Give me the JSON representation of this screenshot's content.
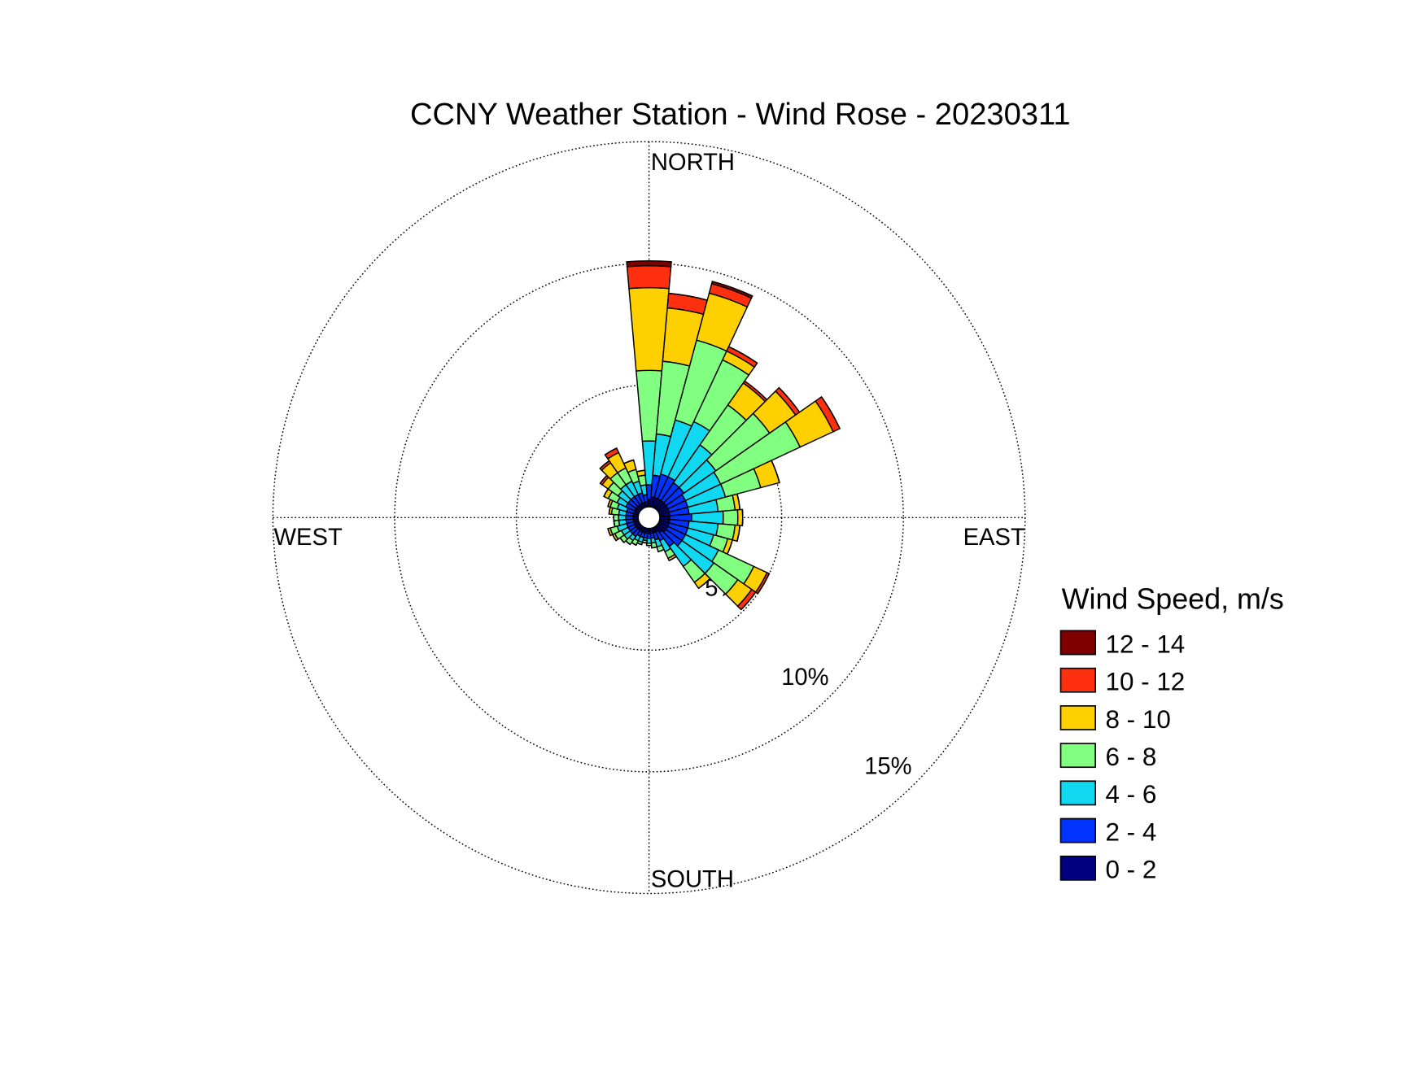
{
  "chart_data": {
    "type": "windrose",
    "title": "CCNY Weather Station - Wind Rose - 20230311",
    "direction_labels": [
      "NORTH",
      "EAST",
      "SOUTH",
      "WEST"
    ],
    "legend_title": "Wind Speed, m/s",
    "ylim": [
      0,
      15
    ],
    "yticks": [
      {
        "value": 5,
        "label": "5%"
      },
      {
        "value": 10,
        "label": "10%"
      },
      {
        "value": 15,
        "label": "15%"
      }
    ],
    "grid": true,
    "legend": "right",
    "series": [
      {
        "name": "0 - 2",
        "color": "#000080",
        "values": [
          0.3,
          0.4,
          0.4,
          0.4,
          0.4,
          0.4,
          0.4,
          0.4,
          0.4,
          0.4,
          0.4,
          0.4,
          0.4,
          0.4,
          0.3,
          0.2,
          0.2,
          0.2,
          0.2,
          0.2,
          0.2,
          0.2,
          0.2,
          0.2,
          0.2,
          0.2,
          0.2,
          0.2,
          0.2,
          0.2,
          0.2,
          0.2,
          0.2,
          0.2,
          0.2,
          0.2
        ]
      },
      {
        "name": "2 - 4",
        "color": "#0033ff",
        "values": [
          0.6,
          0.9,
          1.0,
          1.0,
          0.9,
          0.9,
          0.8,
          0.8,
          0.8,
          0.9,
          0.8,
          0.8,
          0.8,
          0.8,
          0.7,
          0.4,
          0.3,
          0.2,
          0.2,
          0.2,
          0.2,
          0.2,
          0.3,
          0.3,
          0.3,
          0.3,
          0.3,
          0.3,
          0.3,
          0.3,
          0.4,
          0.4,
          0.4,
          0.4,
          0.4,
          0.3
        ]
      },
      {
        "name": "4 - 6",
        "color": "#10d8f0",
        "values": [
          1.8,
          1.7,
          2.3,
          2.5,
          1.9,
          1.6,
          1.6,
          1.6,
          1.2,
          1.3,
          1.2,
          1.1,
          1.5,
          1.6,
          1.0,
          0.5,
          0.3,
          0.2,
          0.2,
          0.1,
          0.2,
          0.2,
          0.2,
          0.3,
          0.3,
          0.4,
          0.3,
          0.3,
          0.3,
          0.4,
          0.4,
          0.5,
          0.6,
          0.6,
          0.5,
          0.4
        ]
      },
      {
        "name": "6 - 8",
        "color": "#80ff80",
        "values": [
          2.9,
          3.0,
          3.4,
          2.8,
          2.0,
          2.7,
          3.6,
          1.5,
          0.7,
          0.6,
          0.7,
          0.6,
          1.6,
          1.2,
          0.8,
          0.3,
          0.2,
          0.2,
          0.1,
          0.1,
          0.1,
          0.2,
          0.2,
          0.2,
          0.3,
          0.3,
          0.2,
          0.2,
          0.3,
          0.3,
          0.4,
          0.5,
          0.6,
          0.6,
          0.5,
          0.4
        ]
      },
      {
        "name": "8 - 10",
        "color": "#ffd000",
        "values": [
          3.4,
          2.2,
          2.0,
          0.4,
          1.1,
          1.3,
          1.5,
          0.8,
          0.2,
          0.2,
          0.2,
          0.2,
          0.6,
          0.7,
          0.3,
          0.1,
          0,
          0,
          0,
          0,
          0,
          0,
          0,
          0,
          0.1,
          0.1,
          0,
          0,
          0.1,
          0.1,
          0.2,
          0.3,
          0.5,
          0.7,
          0.4,
          0.2
        ]
      },
      {
        "name": "10 - 12",
        "color": "#ff3010",
        "values": [
          0.9,
          0.6,
          0.4,
          0.2,
          0.1,
          0.2,
          0.3,
          0,
          0,
          0,
          0,
          0,
          0.1,
          0.2,
          0,
          0,
          0,
          0,
          0,
          0,
          0,
          0,
          0,
          0,
          0,
          0,
          0,
          0,
          0,
          0,
          0,
          0.1,
          0.1,
          0.2,
          0,
          0
        ]
      },
      {
        "name": "12 - 14",
        "color": "#800000",
        "values": [
          0.2,
          0,
          0.1,
          0,
          0,
          0,
          0,
          0,
          0,
          0,
          0,
          0,
          0,
          0,
          0,
          0,
          0,
          0,
          0,
          0,
          0,
          0,
          0,
          0,
          0,
          0,
          0,
          0,
          0,
          0,
          0,
          0,
          0,
          0,
          0,
          0
        ]
      }
    ]
  }
}
